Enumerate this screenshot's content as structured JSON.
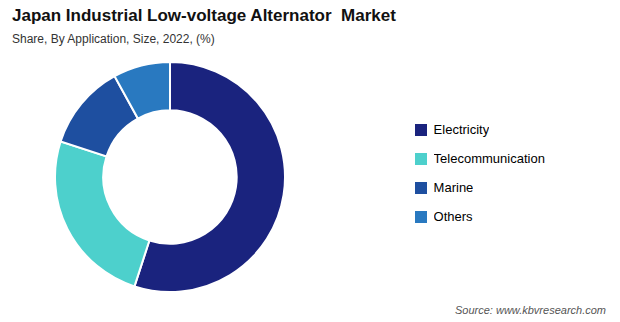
{
  "chart_data": {
    "type": "pie",
    "title": "Japan Industrial Low-voltage Alternator  Market",
    "subtitle": "Share, By Application, Size, 2022, (%)",
    "annotations": [
      "Source: www.kbvresearch.com"
    ],
    "categories": [
      "Electricity",
      "Telecommunication",
      "Marine",
      "Others"
    ],
    "values": [
      55,
      25,
      12,
      8
    ],
    "colors": [
      "#1a237e",
      "#4dd0cc",
      "#1e4fa0",
      "#2979c0"
    ],
    "legend": "right"
  }
}
